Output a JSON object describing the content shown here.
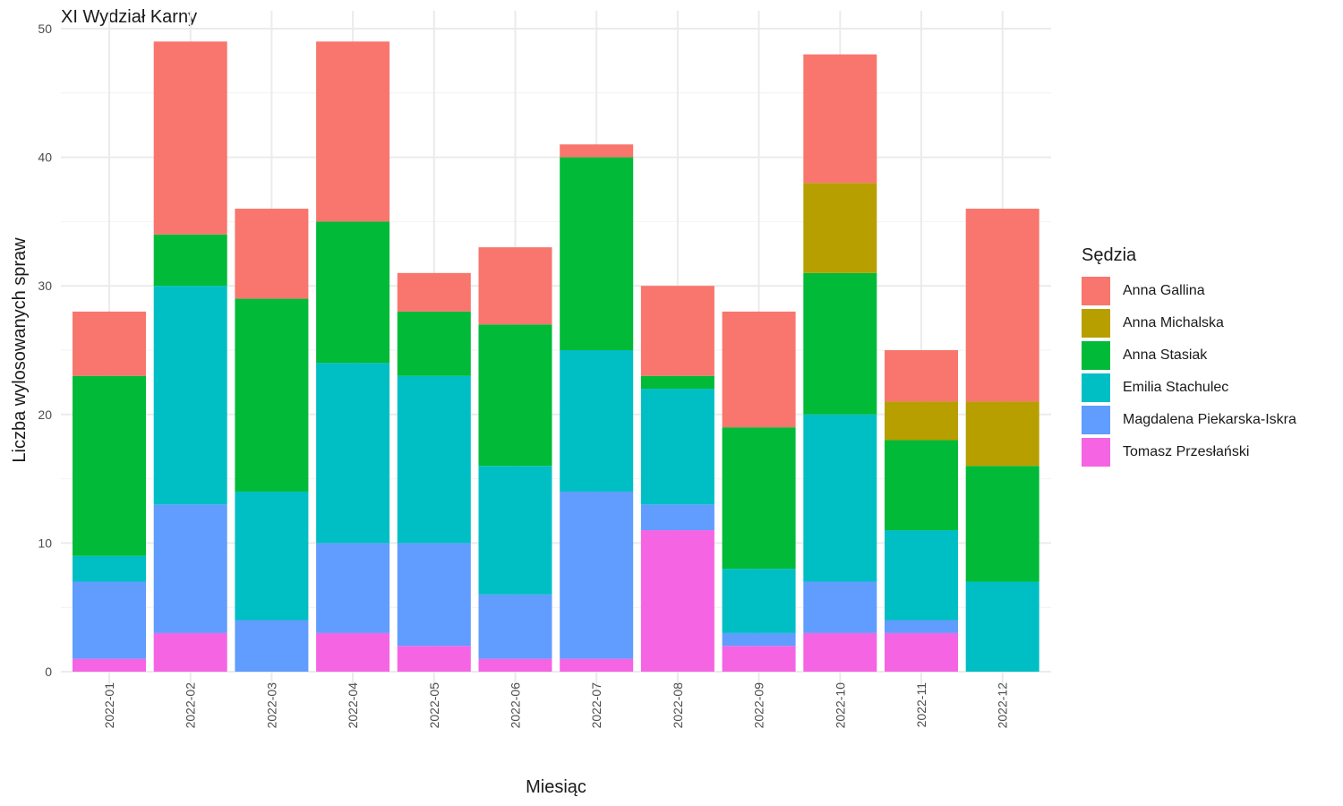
{
  "chart_data": {
    "type": "bar",
    "stacked": true,
    "title": "XI Wydział Karny",
    "xlabel": "Miesiąc",
    "ylabel": "Liczba wylosowanych spraw",
    "ylim": [
      0,
      50
    ],
    "yticks": [
      0,
      10,
      20,
      30,
      40,
      50
    ],
    "grid": true,
    "legend_title": "Sędzia",
    "legend_position": "right",
    "categories": [
      "2022-01",
      "2022-02",
      "2022-03",
      "2022-04",
      "2022-05",
      "2022-06",
      "2022-07",
      "2022-08",
      "2022-09",
      "2022-10",
      "2022-11",
      "2022-12"
    ],
    "series": [
      {
        "name": "Anna Gallina",
        "color": "#F8766D",
        "values": [
          5,
          15,
          7,
          14,
          3,
          6,
          1,
          7,
          9,
          10,
          4,
          15
        ]
      },
      {
        "name": "Anna Michalska",
        "color": "#B79F00",
        "values": [
          0,
          0,
          0,
          0,
          0,
          0,
          0,
          0,
          0,
          7,
          3,
          5
        ]
      },
      {
        "name": "Anna Stasiak",
        "color": "#00BA38",
        "values": [
          14,
          4,
          15,
          11,
          5,
          11,
          15,
          1,
          11,
          11,
          7,
          9
        ]
      },
      {
        "name": "Emilia Stachulec",
        "color": "#00BFC4",
        "values": [
          2,
          17,
          10,
          14,
          13,
          10,
          11,
          9,
          5,
          13,
          7,
          7
        ]
      },
      {
        "name": "Magdalena Piekarska-Iskra",
        "color": "#619CFF",
        "values": [
          6,
          10,
          4,
          7,
          8,
          5,
          13,
          2,
          1,
          4,
          1,
          0
        ]
      },
      {
        "name": "Tomasz Przesłański",
        "color": "#F564E3",
        "values": [
          1,
          3,
          0,
          3,
          2,
          1,
          1,
          11,
          2,
          3,
          3,
          0
        ]
      }
    ]
  }
}
